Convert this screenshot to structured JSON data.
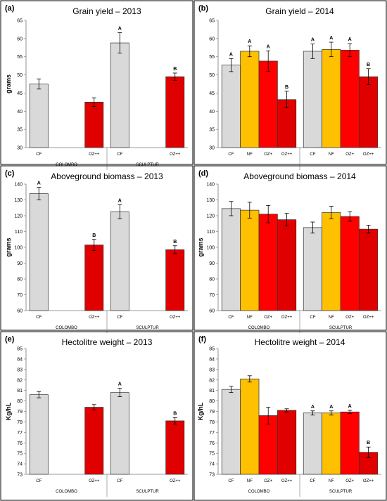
{
  "colors": {
    "CF": "#d9d9d9",
    "NF": "#ffc000",
    "OZ+": "#ff0000",
    "OZ++": "#e00000"
  },
  "chart_data": [
    {
      "type": "bar",
      "panel": "(a)",
      "title": "Grain yield – 2013",
      "ylabel": "grams",
      "ylim": [
        30,
        65
      ],
      "yticks": [
        30,
        35,
        40,
        45,
        50,
        55,
        60,
        65
      ],
      "groups": [
        {
          "name": "COLOMBO",
          "slots": [
            "CF",
            "",
            "",
            "OZ++"
          ],
          "bars": [
            {
              "cat": "CF",
              "value": 47.5,
              "err": 1.4,
              "sig": ""
            },
            {
              "cat": "OZ++",
              "value": 42.5,
              "err": 1.2,
              "sig": ""
            }
          ]
        },
        {
          "name": "SCULPTUR",
          "slots": [
            "CF",
            "",
            "",
            "OZ++"
          ],
          "bars": [
            {
              "cat": "CF",
              "value": 58.8,
              "err": 2.8,
              "sig": "A"
            },
            {
              "cat": "OZ++",
              "value": 49.5,
              "err": 1.0,
              "sig": "B"
            }
          ]
        }
      ]
    },
    {
      "type": "bar",
      "panel": "(b)",
      "title": "Grain yield – 2014",
      "ylabel": "",
      "ylim": [
        30,
        65
      ],
      "yticks": [
        30,
        35,
        40,
        45,
        50,
        55,
        60,
        65
      ],
      "groups": [
        {
          "name": "",
          "slots": [
            "CF",
            "NF",
            "OZ+",
            "OZ++"
          ],
          "bars": [
            {
              "cat": "CF",
              "value": 52.7,
              "err": 1.8,
              "sig": "A"
            },
            {
              "cat": "NF",
              "value": 56.5,
              "err": 1.5,
              "sig": "A"
            },
            {
              "cat": "OZ+",
              "value": 53.8,
              "err": 2.8,
              "sig": "A"
            },
            {
              "cat": "OZ++",
              "value": 43.2,
              "err": 2.3,
              "sig": "B"
            }
          ]
        },
        {
          "name": "",
          "slots": [
            "CF",
            "NF",
            "OZ+",
            "OZ++"
          ],
          "bars": [
            {
              "cat": "CF",
              "value": 56.5,
              "err": 2.0,
              "sig": "A"
            },
            {
              "cat": "NF",
              "value": 57.0,
              "err": 2.0,
              "sig": "A"
            },
            {
              "cat": "OZ+",
              "value": 56.8,
              "err": 1.8,
              "sig": "A"
            },
            {
              "cat": "OZ++",
              "value": 49.5,
              "err": 2.2,
              "sig": "B"
            }
          ]
        }
      ]
    },
    {
      "type": "bar",
      "panel": "(c)",
      "title": "Aboveground biomass – 2013",
      "ylabel": "grams",
      "ylim": [
        60,
        140
      ],
      "yticks": [
        60,
        70,
        80,
        90,
        100,
        110,
        120,
        130,
        140
      ],
      "groups": [
        {
          "name": "COLOMBO",
          "slots": [
            "CF",
            "",
            "",
            "OZ++"
          ],
          "bars": [
            {
              "cat": "CF",
              "value": 134.0,
              "err": 4.0,
              "sig": "A"
            },
            {
              "cat": "OZ++",
              "value": 101.5,
              "err": 3.5,
              "sig": "B"
            }
          ]
        },
        {
          "name": "SCULPTUR",
          "slots": [
            "CF",
            "",
            "",
            "OZ++"
          ],
          "bars": [
            {
              "cat": "CF",
              "value": 122.5,
              "err": 4.5,
              "sig": "A"
            },
            {
              "cat": "OZ++",
              "value": 98.5,
              "err": 2.5,
              "sig": "B"
            }
          ]
        }
      ]
    },
    {
      "type": "bar",
      "panel": "(d)",
      "title": "Aboveground biomass – 2014",
      "ylabel": "grams",
      "ylim": [
        60,
        140
      ],
      "yticks": [
        60,
        70,
        80,
        90,
        100,
        110,
        120,
        130,
        140
      ],
      "groups": [
        {
          "name": "COLOMBO",
          "slots": [
            "CF",
            "NF",
            "OZ+",
            "OZ++"
          ],
          "bars": [
            {
              "cat": "CF",
              "value": 124.5,
              "err": 4.5,
              "sig": ""
            },
            {
              "cat": "NF",
              "value": 123.5,
              "err": 5.0,
              "sig": ""
            },
            {
              "cat": "OZ+",
              "value": 121.0,
              "err": 5.5,
              "sig": ""
            },
            {
              "cat": "OZ++",
              "value": 117.5,
              "err": 4.0,
              "sig": ""
            }
          ]
        },
        {
          "name": "SCULPTUR",
          "slots": [
            "CF",
            "NF",
            "OZ+",
            "OZ++"
          ],
          "bars": [
            {
              "cat": "CF",
              "value": 112.5,
              "err": 3.5,
              "sig": ""
            },
            {
              "cat": "NF",
              "value": 122.0,
              "err": 4.0,
              "sig": ""
            },
            {
              "cat": "OZ+",
              "value": 119.5,
              "err": 3.0,
              "sig": ""
            },
            {
              "cat": "OZ++",
              "value": 111.5,
              "err": 2.5,
              "sig": ""
            }
          ]
        }
      ]
    },
    {
      "type": "bar",
      "panel": "(e)",
      "title": "Hectolitre weight – 2013",
      "ylabel": "Kg/hL",
      "ylim": [
        73,
        85
      ],
      "yticks": [
        73,
        74,
        75,
        76,
        77,
        78,
        79,
        80,
        81,
        82,
        83,
        84,
        85
      ],
      "groups": [
        {
          "name": "COLOMBO",
          "slots": [
            "CF",
            "",
            "",
            "OZ++"
          ],
          "bars": [
            {
              "cat": "CF",
              "value": 80.6,
              "err": 0.3,
              "sig": ""
            },
            {
              "cat": "OZ++",
              "value": 79.4,
              "err": 0.25,
              "sig": ""
            }
          ]
        },
        {
          "name": "SCULPTUR",
          "slots": [
            "CF",
            "",
            "",
            "OZ++"
          ],
          "bars": [
            {
              "cat": "CF",
              "value": 80.8,
              "err": 0.4,
              "sig": "A"
            },
            {
              "cat": "OZ++",
              "value": 78.1,
              "err": 0.3,
              "sig": "B"
            }
          ]
        }
      ]
    },
    {
      "type": "bar",
      "panel": "(f)",
      "title": "Hectolitre weight – 2014",
      "ylabel": "Kg/hL",
      "ylim": [
        73,
        85
      ],
      "yticks": [
        73,
        74,
        75,
        76,
        77,
        78,
        79,
        80,
        81,
        82,
        83,
        84,
        85
      ],
      "groups": [
        {
          "name": "COLOMBO",
          "slots": [
            "CF",
            "NF",
            "OZ+",
            "OZ++"
          ],
          "bars": [
            {
              "cat": "CF",
              "value": 81.1,
              "err": 0.3,
              "sig": ""
            },
            {
              "cat": "NF",
              "value": 82.1,
              "err": 0.3,
              "sig": ""
            },
            {
              "cat": "OZ+",
              "value": 78.6,
              "err": 0.8,
              "sig": ""
            },
            {
              "cat": "OZ++",
              "value": 79.1,
              "err": 0.15,
              "sig": ""
            }
          ]
        },
        {
          "name": "SCULPTUR",
          "slots": [
            "CF",
            "NF",
            "OZ+",
            "OZ++"
          ],
          "bars": [
            {
              "cat": "CF",
              "value": 78.85,
              "err": 0.2,
              "sig": "A"
            },
            {
              "cat": "NF",
              "value": 78.85,
              "err": 0.2,
              "sig": "A"
            },
            {
              "cat": "OZ+",
              "value": 78.95,
              "err": 0.15,
              "sig": "A"
            },
            {
              "cat": "OZ++",
              "value": 75.1,
              "err": 0.5,
              "sig": "B"
            }
          ]
        }
      ]
    }
  ]
}
